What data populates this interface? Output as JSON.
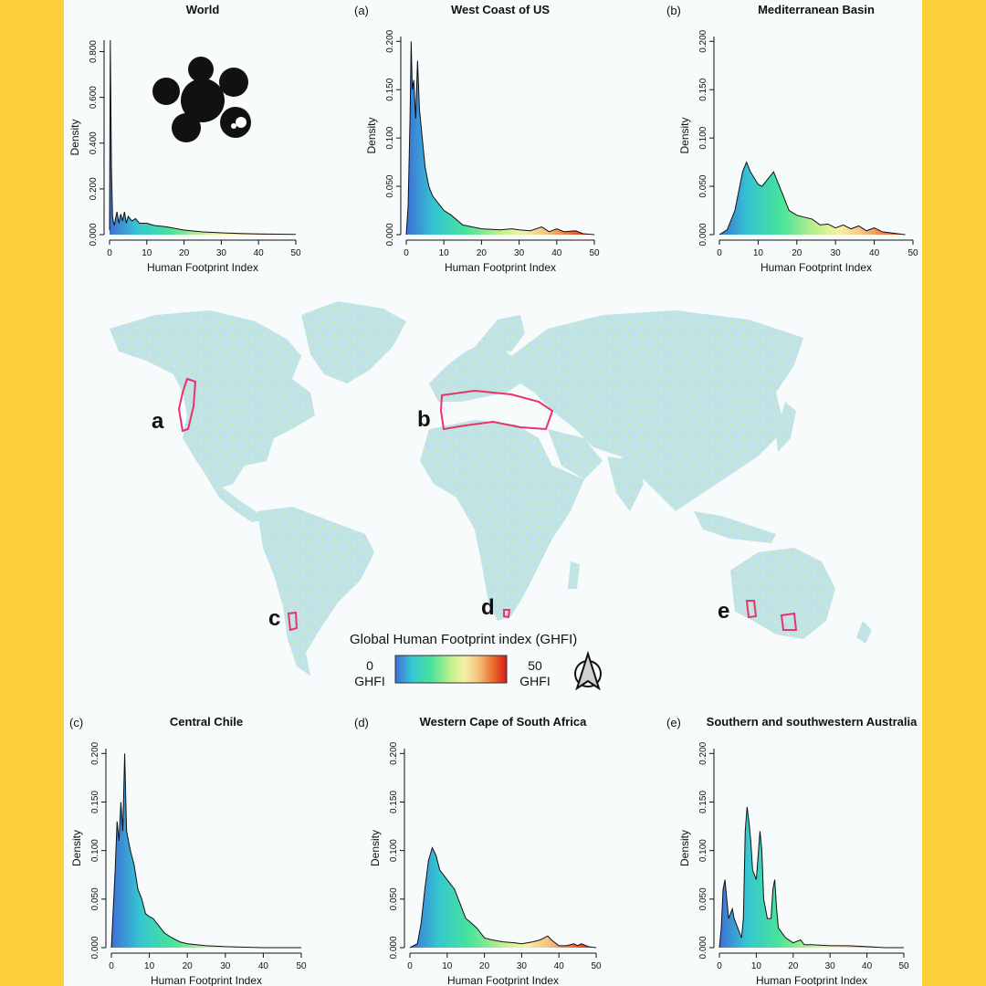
{
  "legend": {
    "title": "Global Human Footprint index (GHFI)",
    "min_value": "0",
    "max_value": "50",
    "unit": "GHFI",
    "colors": [
      "#3f6fd8",
      "#35c6d1",
      "#47e39a",
      "#c2ef8c",
      "#f4f2a8",
      "#f3c07a",
      "#ec6a2c",
      "#d7191c"
    ]
  },
  "map": {
    "region_labels": [
      "a",
      "b",
      "c",
      "d",
      "e"
    ],
    "land_color": "#bfe3e6",
    "outline_color": "#e8336d",
    "north_arrow_icon": "north-arrow-icon"
  },
  "chart_data": [
    {
      "id": "world",
      "tag": "",
      "type": "area",
      "title": "World",
      "xlabel": "Human Footprint Index",
      "ylabel": "Density",
      "xlim": [
        0,
        50
      ],
      "ylim": [
        0,
        0.85
      ],
      "xticks": [
        "0",
        "10",
        "20",
        "30",
        "40",
        "50"
      ],
      "yticks": [
        "0.000",
        "0.200",
        "0.400",
        "0.600",
        "0.800"
      ],
      "x": [
        0,
        0.2,
        0.5,
        0.8,
        1.0,
        1.3,
        1.6,
        2,
        2.5,
        3,
        3.5,
        4,
        4.5,
        5,
        6,
        7,
        8,
        10,
        12,
        15,
        20,
        25,
        30,
        35,
        40,
        45,
        50
      ],
      "y": [
        0.02,
        0.85,
        0.3,
        0.08,
        0.06,
        0.04,
        0.07,
        0.1,
        0.05,
        0.09,
        0.06,
        0.1,
        0.05,
        0.08,
        0.06,
        0.07,
        0.05,
        0.05,
        0.04,
        0.035,
        0.02,
        0.012,
        0.008,
        0.005,
        0.003,
        0.002,
        0.001
      ]
    },
    {
      "id": "a",
      "tag": "(a)",
      "type": "area",
      "title": "West Coast of US",
      "xlabel": "Human Footprint Index",
      "ylabel": "Density",
      "xlim": [
        0,
        50
      ],
      "ylim": [
        0,
        0.205
      ],
      "xticks": [
        "0",
        "10",
        "20",
        "30",
        "40",
        "50"
      ],
      "yticks": [
        "0.000",
        "0.050",
        "0.100",
        "0.150",
        "0.200"
      ],
      "x": [
        0,
        0.5,
        1,
        1.3,
        1.6,
        2,
        2.5,
        3,
        3.5,
        4,
        5,
        6,
        7,
        8,
        10,
        12,
        15,
        20,
        25,
        28,
        30,
        33,
        36,
        38,
        40,
        42,
        45,
        47,
        50
      ],
      "y": [
        0,
        0.03,
        0.12,
        0.2,
        0.15,
        0.16,
        0.12,
        0.18,
        0.13,
        0.11,
        0.07,
        0.05,
        0.04,
        0.035,
        0.025,
        0.02,
        0.01,
        0.006,
        0.005,
        0.006,
        0.005,
        0.004,
        0.008,
        0.003,
        0.006,
        0.003,
        0.004,
        0.001,
        0
      ]
    },
    {
      "id": "b",
      "tag": "(b)",
      "type": "area",
      "title": "Mediterranean Basin",
      "xlabel": "Human Footprint Index",
      "ylabel": "Density",
      "xlim": [
        0,
        50
      ],
      "ylim": [
        0,
        0.205
      ],
      "xticks": [
        "0",
        "10",
        "20",
        "30",
        "40",
        "50"
      ],
      "yticks": [
        "0.000",
        "0.050",
        "0.100",
        "0.150",
        "0.200"
      ],
      "x": [
        0,
        2,
        4,
        6,
        7,
        8,
        10,
        11,
        12,
        14,
        16,
        18,
        20,
        22,
        24,
        26,
        28,
        30,
        32,
        34,
        36,
        38,
        40,
        42,
        44,
        46,
        48
      ],
      "y": [
        0,
        0.005,
        0.025,
        0.065,
        0.075,
        0.065,
        0.052,
        0.05,
        0.055,
        0.065,
        0.045,
        0.025,
        0.02,
        0.018,
        0.016,
        0.01,
        0.011,
        0.007,
        0.01,
        0.006,
        0.009,
        0.004,
        0.007,
        0.003,
        0.002,
        0.001,
        0
      ]
    },
    {
      "id": "c",
      "tag": "(c)",
      "type": "area",
      "title": "Central Chile",
      "xlabel": "Human Footprint Index",
      "ylabel": "Density",
      "xlim": [
        0,
        50
      ],
      "ylim": [
        0,
        0.205
      ],
      "xticks": [
        "0",
        "10",
        "20",
        "30",
        "40",
        "50"
      ],
      "yticks": [
        "0.000",
        "0.050",
        "0.100",
        "0.150",
        "0.200"
      ],
      "x": [
        0,
        1,
        1.5,
        2,
        2.5,
        3,
        3.5,
        4,
        5,
        6,
        7,
        8,
        9,
        10,
        11,
        12,
        14,
        16,
        18,
        20,
        25,
        30,
        40,
        50
      ],
      "y": [
        0,
        0.08,
        0.13,
        0.11,
        0.15,
        0.12,
        0.2,
        0.12,
        0.1,
        0.085,
        0.06,
        0.05,
        0.035,
        0.032,
        0.03,
        0.025,
        0.015,
        0.01,
        0.006,
        0.004,
        0.002,
        0.001,
        0,
        0
      ]
    },
    {
      "id": "d",
      "tag": "(d)",
      "type": "area",
      "title": "Western Cape of South Africa",
      "xlabel": "Human Footprint Index",
      "ylabel": "Density",
      "xlim": [
        0,
        50
      ],
      "ylim": [
        0,
        0.205
      ],
      "xticks": [
        "0",
        "10",
        "20",
        "30",
        "40",
        "50"
      ],
      "yticks": [
        "0.000",
        "0.050",
        "0.100",
        "0.150",
        "0.200"
      ],
      "x": [
        0,
        2,
        3,
        4,
        5,
        6,
        7,
        8,
        10,
        12,
        14,
        15,
        16,
        18,
        20,
        22,
        25,
        28,
        30,
        33,
        35,
        36,
        37,
        38,
        40,
        42,
        44,
        45,
        46,
        48,
        50
      ],
      "y": [
        0,
        0.004,
        0.025,
        0.06,
        0.09,
        0.103,
        0.095,
        0.08,
        0.07,
        0.06,
        0.04,
        0.03,
        0.027,
        0.02,
        0.01,
        0.008,
        0.006,
        0.005,
        0.004,
        0.006,
        0.008,
        0.01,
        0.012,
        0.008,
        0.002,
        0.002,
        0.004,
        0.002,
        0.004,
        0.001,
        0
      ]
    },
    {
      "id": "e",
      "tag": "(e)",
      "type": "area",
      "title": "Southern and southwestern Australia",
      "xlabel": "Human Footprint Index",
      "ylabel": "Density",
      "xlim": [
        0,
        50
      ],
      "ylim": [
        0,
        0.205
      ],
      "xticks": [
        "0",
        "10",
        "20",
        "30",
        "40",
        "50"
      ],
      "yticks": [
        "0.000",
        "0.050",
        "0.100",
        "0.150",
        "0.200"
      ],
      "x": [
        0,
        0.5,
        1,
        1.5,
        2,
        2.5,
        3,
        3.5,
        4,
        4.5,
        5,
        6,
        6.5,
        7,
        7.5,
        8,
        8.5,
        9,
        10,
        11,
        11.5,
        12,
        13,
        14,
        14.5,
        15,
        15.5,
        16,
        17,
        18,
        20,
        22,
        23,
        25,
        30,
        35,
        40,
        45,
        50
      ],
      "y": [
        0,
        0.02,
        0.06,
        0.07,
        0.05,
        0.03,
        0.035,
        0.04,
        0.03,
        0.025,
        0.02,
        0.01,
        0.03,
        0.12,
        0.145,
        0.13,
        0.11,
        0.08,
        0.07,
        0.12,
        0.1,
        0.05,
        0.03,
        0.03,
        0.06,
        0.07,
        0.04,
        0.02,
        0.015,
        0.01,
        0.005,
        0.008,
        0.003,
        0.003,
        0.002,
        0.002,
        0.001,
        0,
        0
      ]
    }
  ]
}
